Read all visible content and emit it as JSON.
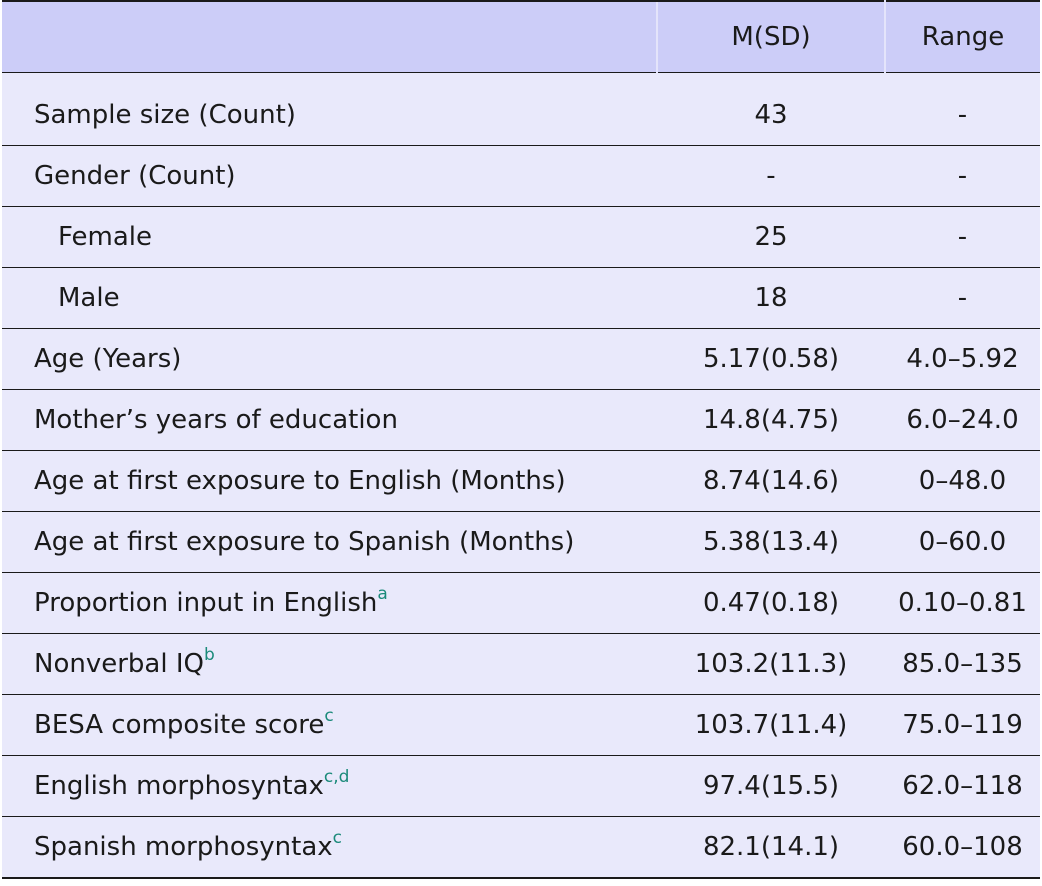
{
  "table": {
    "headers": [
      "",
      "M(SD)",
      "Range"
    ],
    "rows": [
      {
        "label": "Sample size (Count)",
        "sup": "",
        "msd": "43",
        "range": "-"
      },
      {
        "label": "Gender (Count)",
        "sup": "",
        "msd": "-",
        "range": "-"
      },
      {
        "label": "Female",
        "sup": "",
        "msd": "25",
        "range": "-"
      },
      {
        "label": "Male",
        "sup": "",
        "msd": "18",
        "range": "-"
      },
      {
        "label": "Age (Years)",
        "sup": "",
        "msd": "5.17(0.58)",
        "range": "4.0–5.92"
      },
      {
        "label": "Mother’s years of education",
        "sup": "",
        "msd": "14.8(4.75)",
        "range": "6.0–24.0"
      },
      {
        "label": "Age at first exposure to English (Months)",
        "sup": "",
        "msd": "8.74(14.6)",
        "range": "0–48.0"
      },
      {
        "label": "Age at first exposure to Spanish (Months)",
        "sup": "",
        "msd": "5.38(13.4)",
        "range": "0–60.0"
      },
      {
        "label": "Proportion input in English",
        "sup": "a",
        "msd": "0.47(0.18)",
        "range": "0.10–0.81"
      },
      {
        "label": "Nonverbal IQ",
        "sup": "b",
        "msd": "103.2(11.3)",
        "range": "85.0–135"
      },
      {
        "label": "BESA composite score",
        "sup": "c",
        "msd": "103.7(11.4)",
        "range": "75.0–119"
      },
      {
        "label": "English morphosyntax",
        "sup": "c,d",
        "msd": "97.4(15.5)",
        "range": "62.0–118"
      },
      {
        "label": "Spanish morphosyntax",
        "sup": "c",
        "msd": "82.1(14.1)",
        "range": "60.0–108"
      }
    ]
  },
  "colors": {
    "header_bg": "#cccdf8",
    "body_bg": "#e9e9fb",
    "footnote_marker": "#1b8a7a"
  }
}
